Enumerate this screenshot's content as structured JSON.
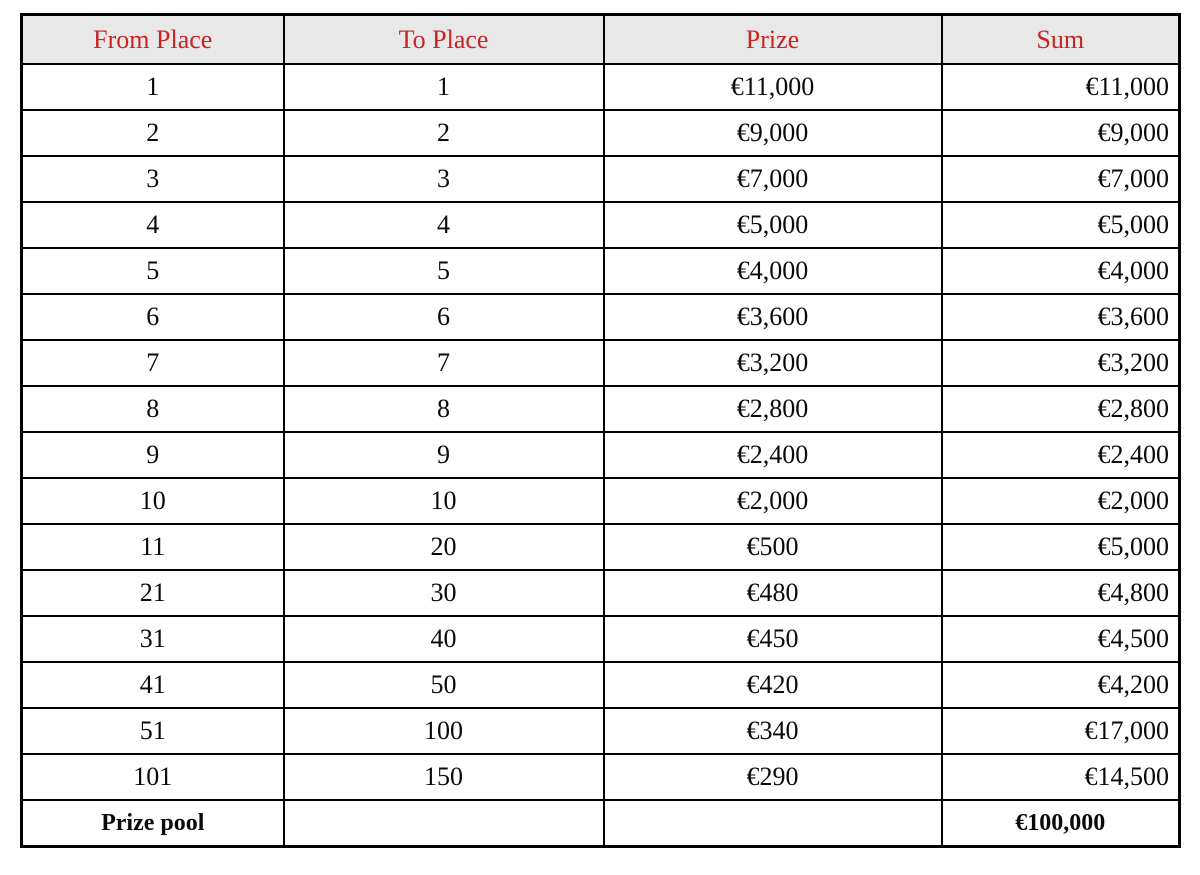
{
  "table": {
    "headers": [
      "From Place",
      "To Place",
      "Prize",
      "Sum"
    ],
    "rows": [
      {
        "from": "1",
        "to": "1",
        "prize": "€11,000",
        "sum": "€11,000"
      },
      {
        "from": "2",
        "to": "2",
        "prize": "€9,000",
        "sum": "€9,000"
      },
      {
        "from": "3",
        "to": "3",
        "prize": "€7,000",
        "sum": "€7,000"
      },
      {
        "from": "4",
        "to": "4",
        "prize": "€5,000",
        "sum": "€5,000"
      },
      {
        "from": "5",
        "to": "5",
        "prize": "€4,000",
        "sum": "€4,000"
      },
      {
        "from": "6",
        "to": "6",
        "prize": "€3,600",
        "sum": "€3,600"
      },
      {
        "from": "7",
        "to": "7",
        "prize": "€3,200",
        "sum": "€3,200"
      },
      {
        "from": "8",
        "to": "8",
        "prize": "€2,800",
        "sum": "€2,800"
      },
      {
        "from": "9",
        "to": "9",
        "prize": "€2,400",
        "sum": "€2,400"
      },
      {
        "from": "10",
        "to": "10",
        "prize": "€2,000",
        "sum": "€2,000"
      },
      {
        "from": "11",
        "to": "20",
        "prize": "€500",
        "sum": "€5,000"
      },
      {
        "from": "21",
        "to": "30",
        "prize": "€480",
        "sum": "€4,800"
      },
      {
        "from": "31",
        "to": "40",
        "prize": "€450",
        "sum": "€4,500"
      },
      {
        "from": "41",
        "to": "50",
        "prize": "€420",
        "sum": "€4,200"
      },
      {
        "from": "51",
        "to": "100",
        "prize": "€340",
        "sum": "€17,000"
      },
      {
        "from": "101",
        "to": "150",
        "prize": "€290",
        "sum": "€14,500"
      }
    ],
    "footer": {
      "label": "Prize pool",
      "to": "",
      "prize": "",
      "total": "€100,000"
    }
  },
  "colors": {
    "header_text": "#cc2222",
    "header_bg": "#e8e8e8",
    "border": "#000000",
    "body_text": "#0a0a0a"
  }
}
